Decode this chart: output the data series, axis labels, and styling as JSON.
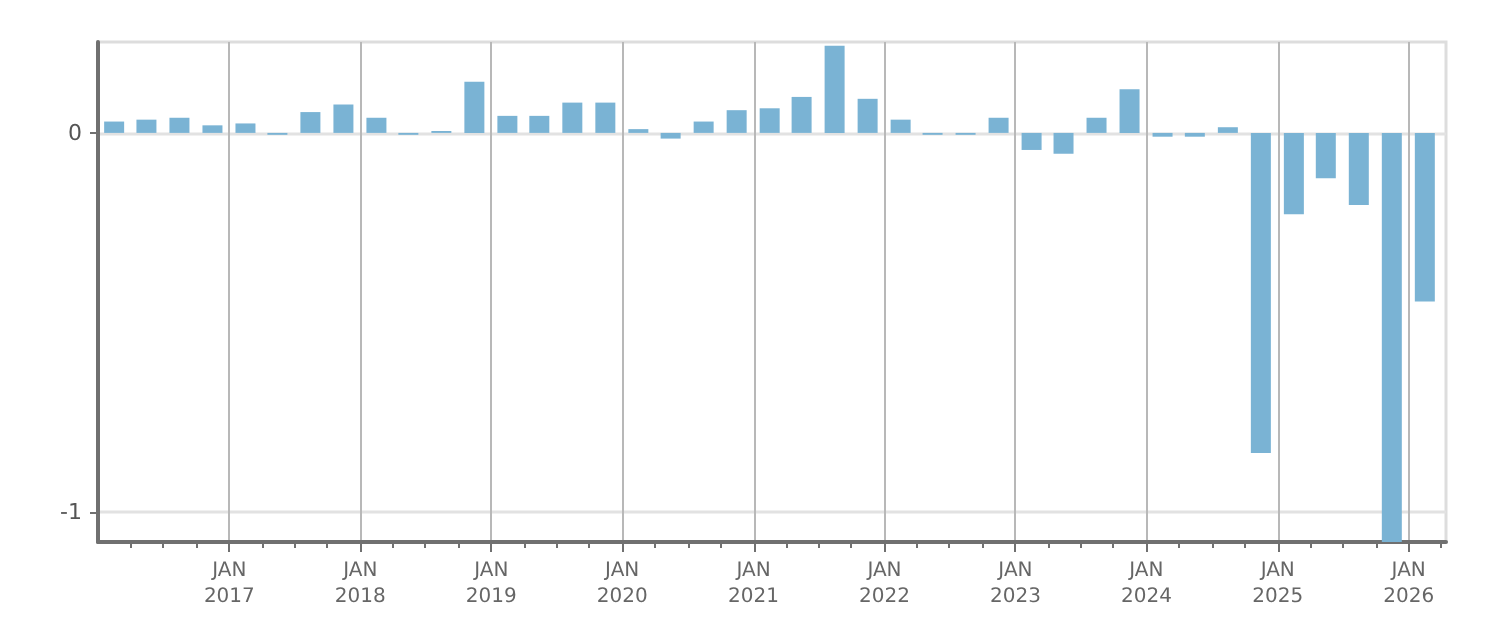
{
  "chart_data": {
    "type": "bar",
    "x": [
      "2016-02-15",
      "2016-05-15",
      "2016-08-15",
      "2016-11-15",
      "2017-02-15",
      "2017-05-15",
      "2017-08-15",
      "2017-11-15",
      "2018-02-15",
      "2018-05-15",
      "2018-08-15",
      "2018-11-15",
      "2019-02-15",
      "2019-05-15",
      "2019-08-15",
      "2019-11-15",
      "2020-02-15",
      "2020-05-15",
      "2020-08-15",
      "2020-11-15",
      "2021-02-15",
      "2021-05-15",
      "2021-08-15",
      "2021-11-15",
      "2022-02-15",
      "2022-05-15",
      "2022-08-15",
      "2022-11-15",
      "2023-02-15",
      "2023-05-15",
      "2023-08-15",
      "2023-11-15",
      "2024-02-15",
      "2024-05-15",
      "2024-08-15",
      "2024-11-15",
      "2025-02-15",
      "2025-05-15",
      "2025-08-15",
      "2025-11-15",
      "2026-02-15"
    ],
    "values": [
      0.03,
      0.035,
      0.04,
      0.02,
      0.025,
      -0.005,
      0.055,
      0.075,
      0.04,
      -0.005,
      0.005,
      0.135,
      0.045,
      0.045,
      0.08,
      0.08,
      0.01,
      -0.015,
      0.03,
      0.06,
      0.065,
      0.095,
      0.23,
      0.09,
      0.035,
      -0.005,
      -0.005,
      0.04,
      -0.045,
      -0.055,
      0.04,
      0.115,
      -0.01,
      -0.01,
      0.015,
      -0.845,
      -0.215,
      -0.12,
      -0.19,
      -1.08,
      -0.445
    ],
    "color": "#7ab3d4",
    "xlim": [
      "2016-01-01",
      "2026-04-15"
    ],
    "xticks": [
      {
        "value": "2016-04-01",
        "label": null
      },
      {
        "value": "2016-07-01",
        "label": null
      },
      {
        "value": "2016-10-01",
        "label": null
      },
      {
        "value": "2017-01-01",
        "label": "JAN\n2017"
      },
      {
        "value": "2017-04-01",
        "label": null
      },
      {
        "value": "2017-07-01",
        "label": null
      },
      {
        "value": "2017-10-01",
        "label": null
      },
      {
        "value": "2018-01-01",
        "label": "JAN\n2018"
      },
      {
        "value": "2018-04-01",
        "label": null
      },
      {
        "value": "2018-07-01",
        "label": null
      },
      {
        "value": "2018-10-01",
        "label": null
      },
      {
        "value": "2019-01-01",
        "label": "JAN\n2019"
      },
      {
        "value": "2019-04-01",
        "label": null
      },
      {
        "value": "2019-07-01",
        "label": null
      },
      {
        "value": "2019-10-01",
        "label": null
      },
      {
        "value": "2020-01-01",
        "label": "JAN\n2020"
      },
      {
        "value": "2020-04-01",
        "label": null
      },
      {
        "value": "2020-07-01",
        "label": null
      },
      {
        "value": "2020-10-01",
        "label": null
      },
      {
        "value": "2021-01-01",
        "label": "JAN\n2021"
      },
      {
        "value": "2021-04-01",
        "label": null
      },
      {
        "value": "2021-07-01",
        "label": null
      },
      {
        "value": "2021-10-01",
        "label": null
      },
      {
        "value": "2022-01-01",
        "label": "JAN\n2022"
      },
      {
        "value": "2022-04-01",
        "label": null
      },
      {
        "value": "2022-07-01",
        "label": null
      },
      {
        "value": "2022-10-01",
        "label": null
      },
      {
        "value": "2023-01-01",
        "label": "JAN\n2023"
      },
      {
        "value": "2023-04-01",
        "label": null
      },
      {
        "value": "2023-07-01",
        "label": null
      },
      {
        "value": "2023-10-01",
        "label": null
      },
      {
        "value": "2024-01-01",
        "label": "JAN\n2024"
      },
      {
        "value": "2024-04-01",
        "label": null
      },
      {
        "value": "2024-07-01",
        "label": null
      },
      {
        "value": "2024-10-01",
        "label": null
      },
      {
        "value": "2025-01-01",
        "label": "JAN\n2025"
      },
      {
        "value": "2025-04-01",
        "label": null
      },
      {
        "value": "2025-07-01",
        "label": null
      },
      {
        "value": "2025-10-01",
        "label": null
      },
      {
        "value": "2026-01-01",
        "label": "JAN\n2026"
      },
      {
        "value": "2026-04-01",
        "label": null
      }
    ],
    "ylim": [
      -1.08,
      0.24
    ],
    "yticks": [
      0,
      -1
    ],
    "grid": true
  }
}
